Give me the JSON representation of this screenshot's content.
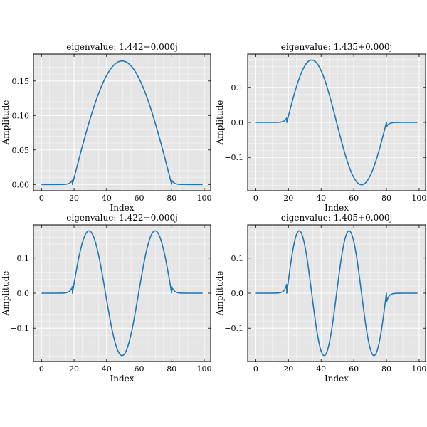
{
  "chart_data": [
    {
      "type": "line",
      "title": "eigenvalue: 1.442+0.000j",
      "xlabel": "Index",
      "ylabel": "Amplitude",
      "xlim": [
        -4.95,
        103.95
      ],
      "ylim": [
        -0.009,
        0.189
      ],
      "xticks": [
        0,
        20,
        40,
        60,
        80,
        100
      ],
      "yticks": [
        0.0,
        0.05,
        0.1,
        0.15
      ],
      "ytick_labels": [
        "0.00",
        "0.05",
        "0.10",
        "0.15"
      ],
      "xtick_labels": [
        "0",
        "20",
        "40",
        "60",
        "80",
        "100"
      ],
      "mode": 1,
      "amplitude": 0.179,
      "series": [
        {
          "values_note": "",
          "x_range": [
            0,
            99
          ]
        }
      ]
    },
    {
      "type": "line",
      "title": "eigenvalue: 1.435+0.000j",
      "xlabel": "Index",
      "ylabel": "Amplitude",
      "xlim": [
        -4.95,
        103.95
      ],
      "ylim": [
        -0.195,
        0.195
      ],
      "xticks": [
        0,
        20,
        40,
        60,
        80,
        100
      ],
      "yticks": [
        -0.1,
        0.0,
        0.1
      ],
      "ytick_labels": [
        "−0.1",
        "0.0",
        "0.1"
      ],
      "xtick_labels": [
        "0",
        "20",
        "40",
        "60",
        "80",
        "100"
      ],
      "mode": 2,
      "amplitude": 0.178,
      "series": [
        {
          "values_note": "",
          "x_range": [
            0,
            99
          ]
        }
      ]
    },
    {
      "type": "line",
      "title": "eigenvalue: 1.422+0.000j",
      "xlabel": "Index",
      "ylabel": "Amplitude",
      "xlim": [
        -4.95,
        103.95
      ],
      "ylim": [
        -0.195,
        0.195
      ],
      "xticks": [
        0,
        20,
        40,
        60,
        80,
        100
      ],
      "yticks": [
        -0.1,
        0.0,
        0.1
      ],
      "ytick_labels": [
        "−0.1",
        "0.0",
        "0.1"
      ],
      "xtick_labels": [
        "0",
        "20",
        "40",
        "60",
        "80",
        "100"
      ],
      "mode": 3,
      "amplitude": 0.178,
      "series": [
        {
          "values_note": "",
          "x_range": [
            0,
            99
          ]
        }
      ]
    },
    {
      "type": "line",
      "title": "eigenvalue: 1.405+0.000j",
      "xlabel": "Index",
      "ylabel": "Amplitude",
      "xlim": [
        -4.95,
        103.95
      ],
      "ylim": [
        -0.195,
        0.195
      ],
      "xticks": [
        0,
        20,
        40,
        60,
        80,
        100
      ],
      "yticks": [
        -0.1,
        0.0,
        0.1
      ],
      "ytick_labels": [
        "−0.1",
        "0.0",
        "0.1"
      ],
      "xtick_labels": [
        "0",
        "20",
        "40",
        "60",
        "80",
        "100"
      ],
      "mode": 4,
      "amplitude": 0.178,
      "series": [
        {
          "values_note": "",
          "x_range": [
            0,
            99
          ]
        }
      ]
    }
  ],
  "colors": {
    "line": "#1f77b4",
    "background": "#e5e5e5",
    "grid": "#ffffff"
  }
}
